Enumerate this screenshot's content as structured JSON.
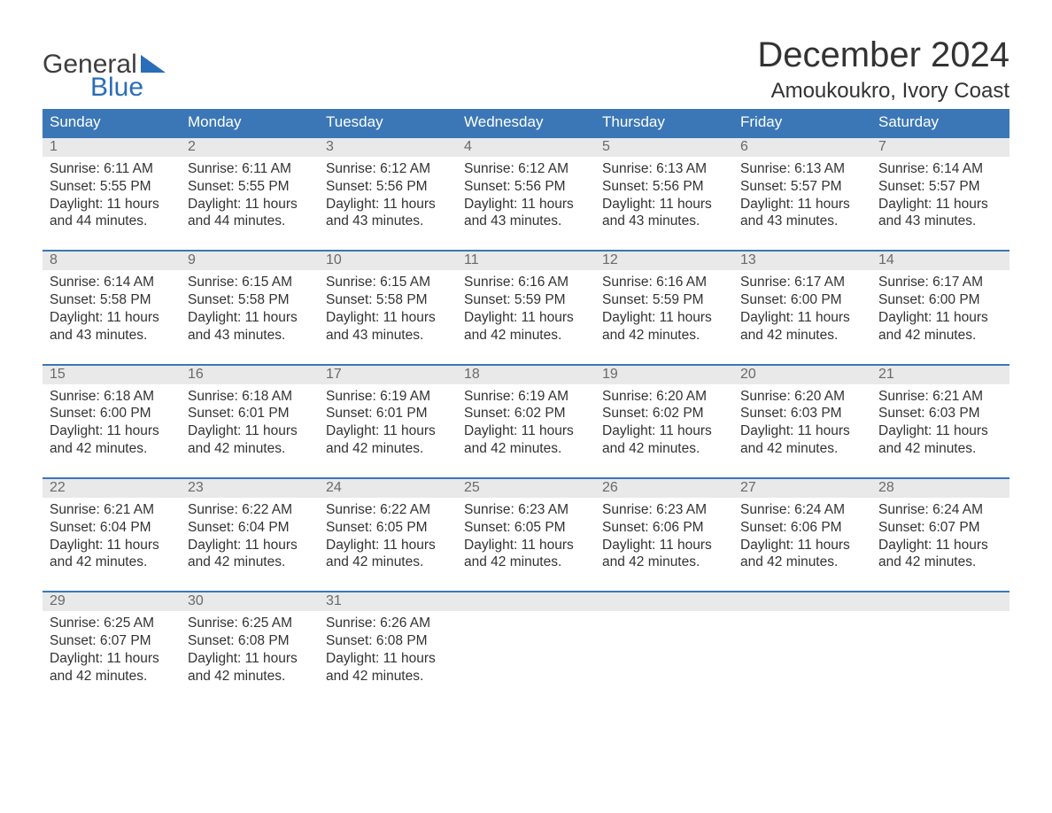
{
  "brand": {
    "word1": "General",
    "word2": "Blue",
    "accent_color": "#2a6db8"
  },
  "header": {
    "month_title": "December 2024",
    "location": "Amoukoukro, Ivory Coast"
  },
  "colors": {
    "header_bg": "#3b77b6",
    "header_text": "#ffffff",
    "daynum_bg": "#e9e9e9",
    "daynum_text": "#6a6a6a",
    "body_text": "#333333",
    "week_border": "#3b77b6",
    "page_bg": "#ffffff"
  },
  "typography": {
    "month_title_fontsize": 40,
    "location_fontsize": 24,
    "dow_fontsize": 17,
    "daynum_fontsize": 16,
    "body_fontsize": 15.5
  },
  "layout": {
    "columns": 7,
    "rows": 5,
    "cell_line_height": 1.28
  },
  "labels": {
    "sunrise": "Sunrise:",
    "sunset": "Sunset:",
    "daylight_prefix": "Daylight:",
    "daylight_join": "and"
  },
  "days_of_week": [
    "Sunday",
    "Monday",
    "Tuesday",
    "Wednesday",
    "Thursday",
    "Friday",
    "Saturday"
  ],
  "weeks": [
    [
      {
        "n": 1,
        "sr": "6:11 AM",
        "ss": "5:55 PM",
        "dh": 11,
        "dm": 44
      },
      {
        "n": 2,
        "sr": "6:11 AM",
        "ss": "5:55 PM",
        "dh": 11,
        "dm": 44
      },
      {
        "n": 3,
        "sr": "6:12 AM",
        "ss": "5:56 PM",
        "dh": 11,
        "dm": 43
      },
      {
        "n": 4,
        "sr": "6:12 AM",
        "ss": "5:56 PM",
        "dh": 11,
        "dm": 43
      },
      {
        "n": 5,
        "sr": "6:13 AM",
        "ss": "5:56 PM",
        "dh": 11,
        "dm": 43
      },
      {
        "n": 6,
        "sr": "6:13 AM",
        "ss": "5:57 PM",
        "dh": 11,
        "dm": 43
      },
      {
        "n": 7,
        "sr": "6:14 AM",
        "ss": "5:57 PM",
        "dh": 11,
        "dm": 43
      }
    ],
    [
      {
        "n": 8,
        "sr": "6:14 AM",
        "ss": "5:58 PM",
        "dh": 11,
        "dm": 43
      },
      {
        "n": 9,
        "sr": "6:15 AM",
        "ss": "5:58 PM",
        "dh": 11,
        "dm": 43
      },
      {
        "n": 10,
        "sr": "6:15 AM",
        "ss": "5:58 PM",
        "dh": 11,
        "dm": 43
      },
      {
        "n": 11,
        "sr": "6:16 AM",
        "ss": "5:59 PM",
        "dh": 11,
        "dm": 42
      },
      {
        "n": 12,
        "sr": "6:16 AM",
        "ss": "5:59 PM",
        "dh": 11,
        "dm": 42
      },
      {
        "n": 13,
        "sr": "6:17 AM",
        "ss": "6:00 PM",
        "dh": 11,
        "dm": 42
      },
      {
        "n": 14,
        "sr": "6:17 AM",
        "ss": "6:00 PM",
        "dh": 11,
        "dm": 42
      }
    ],
    [
      {
        "n": 15,
        "sr": "6:18 AM",
        "ss": "6:00 PM",
        "dh": 11,
        "dm": 42
      },
      {
        "n": 16,
        "sr": "6:18 AM",
        "ss": "6:01 PM",
        "dh": 11,
        "dm": 42
      },
      {
        "n": 17,
        "sr": "6:19 AM",
        "ss": "6:01 PM",
        "dh": 11,
        "dm": 42
      },
      {
        "n": 18,
        "sr": "6:19 AM",
        "ss": "6:02 PM",
        "dh": 11,
        "dm": 42
      },
      {
        "n": 19,
        "sr": "6:20 AM",
        "ss": "6:02 PM",
        "dh": 11,
        "dm": 42
      },
      {
        "n": 20,
        "sr": "6:20 AM",
        "ss": "6:03 PM",
        "dh": 11,
        "dm": 42
      },
      {
        "n": 21,
        "sr": "6:21 AM",
        "ss": "6:03 PM",
        "dh": 11,
        "dm": 42
      }
    ],
    [
      {
        "n": 22,
        "sr": "6:21 AM",
        "ss": "6:04 PM",
        "dh": 11,
        "dm": 42
      },
      {
        "n": 23,
        "sr": "6:22 AM",
        "ss": "6:04 PM",
        "dh": 11,
        "dm": 42
      },
      {
        "n": 24,
        "sr": "6:22 AM",
        "ss": "6:05 PM",
        "dh": 11,
        "dm": 42
      },
      {
        "n": 25,
        "sr": "6:23 AM",
        "ss": "6:05 PM",
        "dh": 11,
        "dm": 42
      },
      {
        "n": 26,
        "sr": "6:23 AM",
        "ss": "6:06 PM",
        "dh": 11,
        "dm": 42
      },
      {
        "n": 27,
        "sr": "6:24 AM",
        "ss": "6:06 PM",
        "dh": 11,
        "dm": 42
      },
      {
        "n": 28,
        "sr": "6:24 AM",
        "ss": "6:07 PM",
        "dh": 11,
        "dm": 42
      }
    ],
    [
      {
        "n": 29,
        "sr": "6:25 AM",
        "ss": "6:07 PM",
        "dh": 11,
        "dm": 42
      },
      {
        "n": 30,
        "sr": "6:25 AM",
        "ss": "6:08 PM",
        "dh": 11,
        "dm": 42
      },
      {
        "n": 31,
        "sr": "6:26 AM",
        "ss": "6:08 PM",
        "dh": 11,
        "dm": 42
      },
      null,
      null,
      null,
      null
    ]
  ]
}
